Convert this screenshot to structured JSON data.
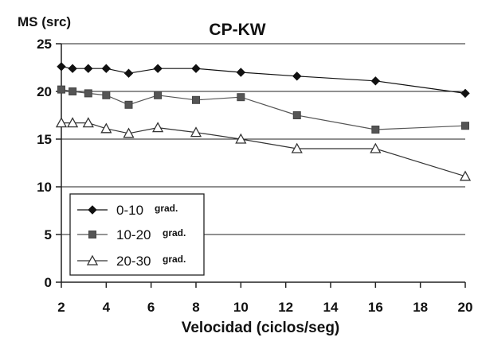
{
  "chart_data": {
    "type": "line",
    "title": "CP-KW",
    "ylabel": "MS (src)",
    "xlabel": "Velocidad (ciclos/seg)",
    "xlim": [
      2,
      20
    ],
    "ylim": [
      0,
      25
    ],
    "xticks": [
      2,
      4,
      6,
      8,
      10,
      12,
      14,
      16,
      18,
      20
    ],
    "yticks": [
      0,
      5,
      10,
      15,
      20,
      25
    ],
    "grid": "horizontal",
    "legend_position": "bottom-left",
    "series": [
      {
        "name": "0-10",
        "unit": "grad.",
        "marker": "diamond",
        "color": "#111111",
        "x": [
          2,
          2.5,
          3.2,
          4,
          5,
          6.3,
          8,
          10,
          12.5,
          16,
          20
        ],
        "y": [
          22.6,
          22.4,
          22.4,
          22.4,
          21.9,
          22.4,
          22.4,
          22.0,
          21.6,
          21.1,
          19.8
        ]
      },
      {
        "name": "10-20",
        "unit": "grad.",
        "marker": "square",
        "color": "#555555",
        "x": [
          2,
          2.5,
          3.2,
          4,
          5,
          6.3,
          8,
          10,
          12.5,
          16,
          20
        ],
        "y": [
          20.2,
          20.0,
          19.8,
          19.6,
          18.6,
          19.6,
          19.1,
          19.4,
          17.5,
          16.0,
          16.4
        ]
      },
      {
        "name": "20-30",
        "unit": "grad.",
        "marker": "triangle",
        "color": "#333333",
        "x": [
          2,
          2.5,
          3.2,
          4,
          5,
          6.3,
          8,
          10,
          12.5,
          16,
          20
        ],
        "y": [
          16.7,
          16.7,
          16.7,
          16.1,
          15.6,
          16.2,
          15.7,
          15.0,
          14.0,
          14.0,
          11.1
        ]
      }
    ]
  }
}
